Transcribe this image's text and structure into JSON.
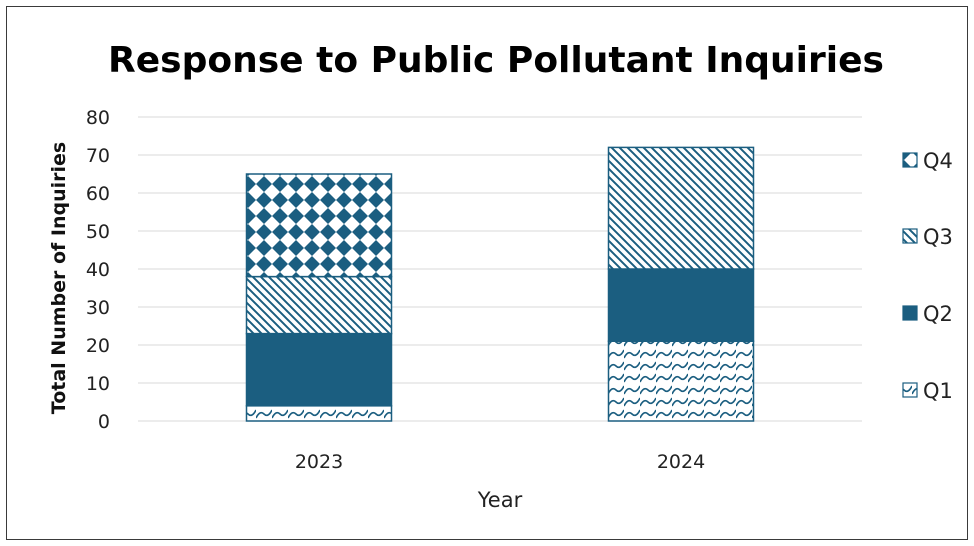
{
  "chart_data": {
    "type": "bar",
    "stacked": true,
    "title": "Response to Public Pollutant Inquiries",
    "xlabel": "Year",
    "ylabel": "Total Number of Inquiries",
    "categories": [
      "2023",
      "2024"
    ],
    "ylim": [
      0,
      80
    ],
    "yticks": [
      0,
      10,
      20,
      30,
      40,
      50,
      60,
      70,
      80
    ],
    "grid": true,
    "legend_position": "right",
    "series": [
      {
        "name": "Q1",
        "values": [
          4,
          21
        ],
        "pattern": "waves"
      },
      {
        "name": "Q2",
        "values": [
          19,
          19
        ],
        "pattern": "solid"
      },
      {
        "name": "Q3",
        "values": [
          15,
          32
        ],
        "pattern": "diagonal"
      },
      {
        "name": "Q4",
        "values": [
          27,
          0
        ],
        "pattern": "diamond"
      }
    ],
    "legend_order": [
      "Q4",
      "Q3",
      "Q2",
      "Q1"
    ],
    "colors": {
      "series": "#1b5e80",
      "grid": "#d9d9d9"
    }
  }
}
